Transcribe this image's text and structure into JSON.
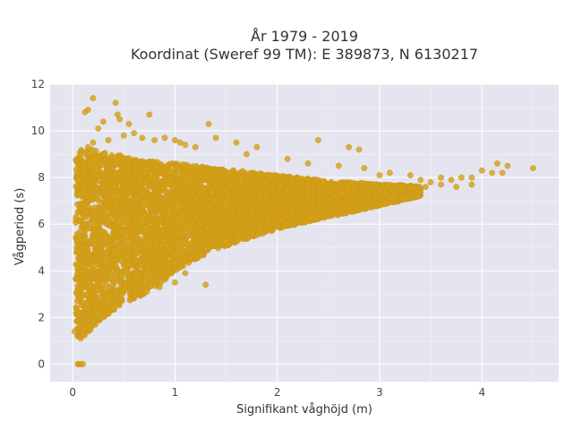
{
  "chart_data": {
    "type": "scatter",
    "title_line1": "År 1979 - 2019",
    "title_line2": "Koordinat (Sweref 99 TM): E 389873, N 6130217",
    "xlabel": "Signifikant våghöjd (m)",
    "ylabel": "Vågperiod (s)",
    "xlim": [
      -0.22,
      4.75
    ],
    "ylim": [
      -0.75,
      12
    ],
    "x_ticks": [
      0,
      1,
      2,
      3,
      4
    ],
    "y_ticks": [
      0,
      2,
      4,
      6,
      8,
      10,
      12
    ],
    "grid": true,
    "legend": "none",
    "colors": {
      "plot_background": "#e5e5f0",
      "marker": "#d4a017",
      "marker_edge": "#c8961a"
    },
    "points": [
      [
        0.05,
        0
      ],
      [
        0.08,
        0
      ],
      [
        0.1,
        0
      ],
      [
        0.06,
        0
      ],
      [
        0.02,
        1.4
      ],
      [
        0.05,
        1.2
      ],
      [
        0.08,
        1.1
      ],
      [
        0.1,
        1.3
      ],
      [
        0.12,
        1.5
      ],
      [
        0.2,
        11.4
      ],
      [
        0.15,
        10.9
      ],
      [
        0.42,
        11.2
      ],
      [
        0.44,
        10.7
      ],
      [
        0.12,
        10.8
      ],
      [
        0.3,
        10.4
      ],
      [
        0.46,
        10.5
      ],
      [
        0.55,
        10.3
      ],
      [
        0.75,
        10.7
      ],
      [
        1.0,
        9.6
      ],
      [
        1.05,
        9.5
      ],
      [
        1.1,
        9.4
      ],
      [
        1.33,
        10.3
      ],
      [
        1.4,
        9.7
      ],
      [
        1.2,
        9.3
      ],
      [
        1.6,
        9.5
      ],
      [
        1.8,
        9.3
      ],
      [
        2.4,
        9.6
      ],
      [
        2.8,
        9.2
      ],
      [
        2.7,
        9.3
      ],
      [
        1.7,
        9.0
      ],
      [
        2.1,
        8.8
      ],
      [
        2.3,
        8.6
      ],
      [
        2.6,
        8.5
      ],
      [
        2.85,
        8.4
      ],
      [
        3.0,
        8.1
      ],
      [
        3.1,
        8.2
      ],
      [
        3.3,
        8.1
      ],
      [
        3.4,
        7.9
      ],
      [
        3.5,
        7.8
      ],
      [
        3.6,
        8.0
      ],
      [
        3.7,
        7.9
      ],
      [
        3.8,
        8.0
      ],
      [
        3.9,
        8.0
      ],
      [
        4.0,
        8.3
      ],
      [
        4.1,
        8.2
      ],
      [
        4.15,
        8.6
      ],
      [
        4.2,
        8.2
      ],
      [
        4.25,
        8.5
      ],
      [
        4.5,
        8.4
      ],
      [
        3.45,
        7.6
      ],
      [
        3.6,
        7.7
      ],
      [
        3.75,
        7.6
      ],
      [
        3.9,
        7.7
      ],
      [
        0.7,
        3.4
      ],
      [
        0.85,
        3.3
      ],
      [
        1.0,
        3.5
      ],
      [
        1.3,
        3.4
      ],
      [
        1.1,
        3.9
      ],
      [
        0.15,
        9.3
      ],
      [
        0.2,
        9.5
      ],
      [
        0.35,
        9.6
      ],
      [
        0.5,
        9.8
      ],
      [
        0.6,
        9.9
      ],
      [
        0.68,
        9.7
      ],
      [
        0.8,
        9.6
      ],
      [
        0.9,
        9.7
      ],
      [
        0.25,
        10.1
      ]
    ],
    "density": {
      "description_note": "",
      "core_bands": [
        {
          "x": 0.03,
          "ymin": 1.2,
          "ymax": 8.8
        },
        {
          "x": 0.1,
          "ymin": 1.1,
          "ymax": 9.3
        },
        {
          "x": 0.2,
          "ymin": 1.6,
          "ymax": 9.2
        },
        {
          "x": 0.3,
          "ymin": 2.0,
          "ymax": 9.1
        },
        {
          "x": 0.4,
          "ymin": 2.3,
          "ymax": 9.0
        },
        {
          "x": 0.5,
          "ymin": 2.6,
          "ymax": 8.9
        },
        {
          "x": 0.6,
          "ymin": 2.8,
          "ymax": 8.8
        },
        {
          "x": 0.7,
          "ymin": 3.0,
          "ymax": 8.7
        },
        {
          "x": 0.8,
          "ymin": 3.3,
          "ymax": 8.7
        },
        {
          "x": 0.9,
          "ymin": 3.6,
          "ymax": 8.6
        },
        {
          "x": 1.0,
          "ymin": 4.0,
          "ymax": 8.6
        },
        {
          "x": 1.2,
          "ymin": 4.5,
          "ymax": 8.5
        },
        {
          "x": 1.4,
          "ymin": 4.9,
          "ymax": 8.4
        },
        {
          "x": 1.6,
          "ymin": 5.2,
          "ymax": 8.3
        },
        {
          "x": 1.8,
          "ymin": 5.5,
          "ymax": 8.2
        },
        {
          "x": 2.0,
          "ymin": 5.8,
          "ymax": 8.1
        },
        {
          "x": 2.2,
          "ymin": 6.0,
          "ymax": 8.0
        },
        {
          "x": 2.4,
          "ymin": 6.2,
          "ymax": 7.9
        },
        {
          "x": 2.6,
          "ymin": 6.4,
          "ymax": 7.8
        },
        {
          "x": 2.8,
          "ymin": 6.6,
          "ymax": 7.8
        },
        {
          "x": 3.0,
          "ymin": 6.8,
          "ymax": 7.7
        },
        {
          "x": 3.2,
          "ymin": 7.0,
          "ymax": 7.7
        },
        {
          "x": 3.4,
          "ymin": 7.2,
          "ymax": 7.6
        }
      ]
    }
  }
}
